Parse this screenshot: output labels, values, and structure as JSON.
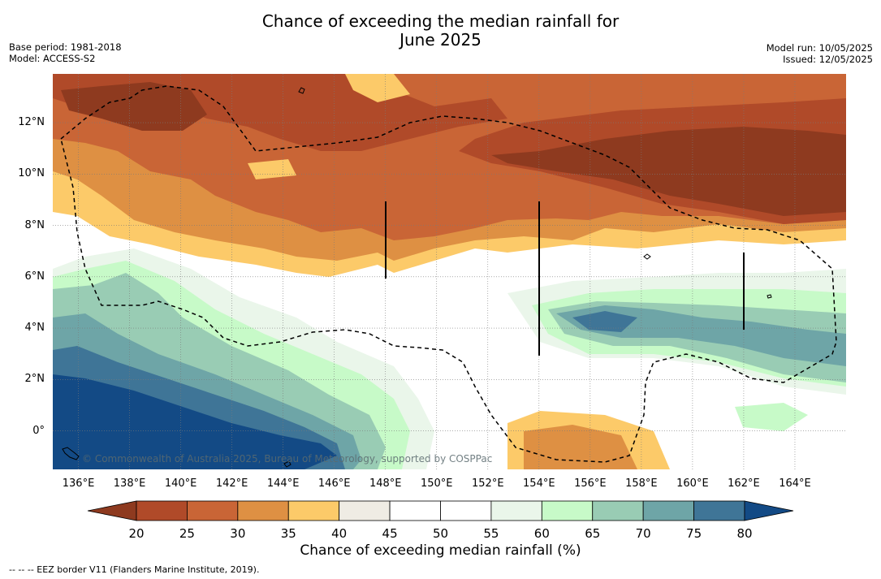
{
  "title_line1": "Chance of exceeding the median rainfall for",
  "title_line2": "June 2025",
  "base_period": "Base period: 1981-2018",
  "model": "Model: ACCESS-S2",
  "model_run": "Model run: 10/05/2025",
  "issued": "Issued: 12/05/2025",
  "copyright": "© Commonwealth of Australia 2025, Bureau of Meteorology, supported by COSPPac",
  "footnote": "-- -- -- EEZ border V11 (Flanders Marine Institute, 2019).",
  "map": {
    "lon_range": [
      135,
      166
    ],
    "lat_range": [
      -1.5,
      13.9
    ],
    "lat_ticks": [
      {
        "value": 12,
        "label": "12°N"
      },
      {
        "value": 10,
        "label": "10°N"
      },
      {
        "value": 8,
        "label": "8°N"
      },
      {
        "value": 6,
        "label": "6°N"
      },
      {
        "value": 4,
        "label": "4°N"
      },
      {
        "value": 2,
        "label": "2°N"
      },
      {
        "value": 0,
        "label": "0°"
      }
    ],
    "lon_ticks": [
      {
        "value": 136,
        "label": "136°E"
      },
      {
        "value": 138,
        "label": "138°E"
      },
      {
        "value": 140,
        "label": "140°E"
      },
      {
        "value": 142,
        "label": "142°E"
      },
      {
        "value": 144,
        "label": "144°E"
      },
      {
        "value": 146,
        "label": "146°E"
      },
      {
        "value": 148,
        "label": "148°E"
      },
      {
        "value": 150,
        "label": "150°E"
      },
      {
        "value": 152,
        "label": "152°E"
      },
      {
        "value": 154,
        "label": "154°E"
      },
      {
        "value": 156,
        "label": "156°E"
      },
      {
        "value": 158,
        "label": "158°E"
      },
      {
        "value": 160,
        "label": "160°E"
      },
      {
        "value": 162,
        "label": "162°E"
      },
      {
        "value": 164,
        "label": "164°E"
      }
    ]
  },
  "colorbar": {
    "label": "Chance of exceeding median rainfall (%)",
    "ticks": [
      "20",
      "25",
      "30",
      "35",
      "40",
      "45",
      "50",
      "55",
      "60",
      "65",
      "70",
      "75",
      "80"
    ],
    "under_color": "#8e3a1f",
    "over_color": "#134a85",
    "colors": [
      "#b04a29",
      "#c96536",
      "#de9043",
      "#fcca69",
      "#efece4",
      "#ffffff",
      "#ffffff",
      "#eaf6ea",
      "#c7fac8",
      "#99ccb4",
      "#6ea5a7",
      "#3f7597"
    ]
  }
}
